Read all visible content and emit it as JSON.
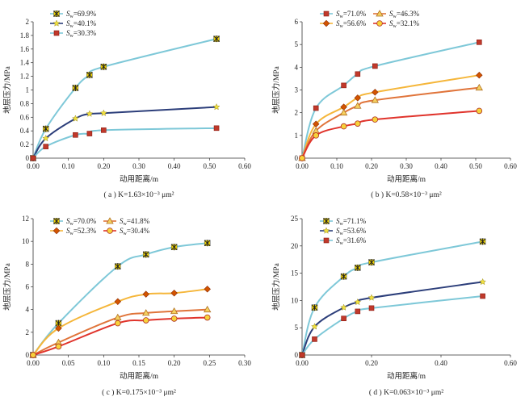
{
  "chart_data": [
    {
      "id": "a",
      "type": "line",
      "caption": "( a ) K=1.63×10⁻³ μm²",
      "xlabel": "动用距离/m",
      "ylabel": "地层压力/MPa",
      "xlim": [
        0,
        0.6
      ],
      "ylim": [
        0,
        2
      ],
      "xticks": [
        0,
        0.1,
        0.2,
        0.3,
        0.4,
        0.5,
        0.6
      ],
      "yticks": [
        0,
        0.2,
        0.4,
        0.6,
        0.8,
        1.0,
        1.2,
        1.4,
        1.6,
        1.8,
        2.0
      ],
      "xtick_labels": [
        "0.00",
        "0.10",
        "0.20",
        "0.30",
        "0.40",
        "0.50",
        "0.60"
      ],
      "ytick_labels": [
        "0",
        "0.2",
        "0.4",
        "0.6",
        "0.8",
        "1",
        "1.2",
        "1.4",
        "1.6",
        "1.8",
        "2"
      ],
      "grid": false,
      "legend_position": "top-left",
      "series": [
        {
          "name": "Sw=69.9%",
          "sub_label": "w",
          "value_label": "=69.9%",
          "marker": "x-star",
          "marker_color": "#f0d400",
          "line_color": "#7ec8d8",
          "x": [
            0,
            0.036,
            0.12,
            0.16,
            0.2,
            0.52
          ],
          "y": [
            0,
            0.43,
            1.03,
            1.22,
            1.34,
            1.75
          ]
        },
        {
          "name": "Sw=40.1%",
          "sub_label": "w",
          "value_label": "=40.1%",
          "marker": "star",
          "marker_color": "#f0e040",
          "line_color": "#2c3e7a",
          "x": [
            0,
            0.036,
            0.12,
            0.16,
            0.2,
            0.52
          ],
          "y": [
            0,
            0.29,
            0.58,
            0.65,
            0.66,
            0.75
          ]
        },
        {
          "name": "Sw=30.3%",
          "sub_label": "w",
          "value_label": "=30.3%",
          "marker": "square",
          "marker_color": "#c0392b",
          "line_color": "#7ec8d8",
          "x": [
            0,
            0.036,
            0.12,
            0.16,
            0.2,
            0.52
          ],
          "y": [
            0,
            0.17,
            0.34,
            0.36,
            0.41,
            0.44
          ]
        }
      ]
    },
    {
      "id": "b",
      "type": "line",
      "caption": "( b ) K=0.58×10⁻³ μm²",
      "xlabel": "动用距离/m",
      "ylabel": "地层压力/MPa",
      "xlim": [
        0,
        0.6
      ],
      "ylim": [
        0,
        6
      ],
      "xticks": [
        0,
        0.1,
        0.2,
        0.3,
        0.4,
        0.5,
        0.6
      ],
      "yticks": [
        0,
        1,
        2,
        3,
        4,
        5,
        6
      ],
      "xtick_labels": [
        "0.00",
        "0.10",
        "0.20",
        "0.30",
        "0.40",
        "0.50",
        "0.60"
      ],
      "ytick_labels": [
        "0",
        "1",
        "2",
        "3",
        "4",
        "5",
        "6"
      ],
      "grid": false,
      "legend_position": "top-left",
      "series": [
        {
          "name": "Sw=71.0%",
          "sub_label": "w",
          "value_label": "=71.0%",
          "marker": "square",
          "marker_color": "#c0392b",
          "line_color": "#7ec8d8",
          "x": [
            0,
            0.04,
            0.12,
            0.16,
            0.21,
            0.51
          ],
          "y": [
            0,
            2.2,
            3.2,
            3.7,
            4.05,
            5.1
          ]
        },
        {
          "name": "Sw=56.6%",
          "sub_label": "w",
          "value_label": "=56.6%",
          "marker": "diamond",
          "marker_color": "#d35400",
          "line_color": "#f5b63a",
          "x": [
            0,
            0.04,
            0.12,
            0.16,
            0.21,
            0.51
          ],
          "y": [
            0,
            1.5,
            2.25,
            2.65,
            2.9,
            3.65
          ]
        },
        {
          "name": "Sw=46.3%",
          "sub_label": "w",
          "value_label": "=46.3%",
          "marker": "triangle",
          "marker_color": "#f5d060",
          "line_color": "#e0743a",
          "x": [
            0,
            0.04,
            0.12,
            0.16,
            0.21,
            0.51
          ],
          "y": [
            0,
            1.2,
            2.0,
            2.3,
            2.55,
            3.1
          ]
        },
        {
          "name": "Sw=32.1%",
          "sub_label": "w",
          "value_label": "=32.1%",
          "marker": "circle",
          "marker_color": "#f7d23a",
          "line_color": "#e0342c",
          "x": [
            0,
            0.04,
            0.12,
            0.16,
            0.21,
            0.51
          ],
          "y": [
            0,
            1.0,
            1.4,
            1.52,
            1.7,
            2.08
          ]
        }
      ]
    },
    {
      "id": "c",
      "type": "line",
      "caption": "( c ) K=0.175×10⁻³ μm²",
      "xlabel": "动用距离/m",
      "ylabel": "地层压力/MPa",
      "xlim": [
        0,
        0.3
      ],
      "ylim": [
        0,
        12
      ],
      "xticks": [
        0,
        0.05,
        0.1,
        0.15,
        0.2,
        0.25,
        0.3
      ],
      "yticks": [
        0,
        2,
        4,
        6,
        8,
        10,
        12
      ],
      "xtick_labels": [
        "0.00",
        "0.05",
        "0.10",
        "0.15",
        "0.20",
        "0.25",
        "0.30"
      ],
      "ytick_labels": [
        "0",
        "2",
        "4",
        "6",
        "8",
        "10",
        "12"
      ],
      "grid": false,
      "legend_position": "top-left",
      "series": [
        {
          "name": "Sw=70.0%",
          "sub_label": "w",
          "value_label": "=70.0%",
          "marker": "x-star",
          "marker_color": "#f0d400",
          "line_color": "#7ec8d8",
          "x": [
            0,
            0.036,
            0.12,
            0.16,
            0.2,
            0.247
          ],
          "y": [
            0,
            2.8,
            7.8,
            8.85,
            9.5,
            9.85
          ]
        },
        {
          "name": "Sw=52.3%",
          "sub_label": "w",
          "value_label": "=52.3%",
          "marker": "diamond",
          "marker_color": "#d35400",
          "line_color": "#f5b63a",
          "x": [
            0,
            0.036,
            0.12,
            0.16,
            0.2,
            0.247
          ],
          "y": [
            0,
            2.35,
            4.7,
            5.35,
            5.45,
            5.8
          ]
        },
        {
          "name": "Sw=41.8%",
          "sub_label": "w",
          "value_label": "=41.8%",
          "marker": "triangle",
          "marker_color": "#f5d060",
          "line_color": "#e0743a",
          "x": [
            0,
            0.036,
            0.12,
            0.16,
            0.2,
            0.247
          ],
          "y": [
            0,
            1.1,
            3.3,
            3.7,
            3.85,
            4.0
          ]
        },
        {
          "name": "Sw=30.4%",
          "sub_label": "w",
          "value_label": "=30.4%",
          "marker": "circle",
          "marker_color": "#f7d23a",
          "line_color": "#e0342c",
          "x": [
            0,
            0.036,
            0.12,
            0.16,
            0.2,
            0.247
          ],
          "y": [
            0,
            0.75,
            2.8,
            3.05,
            3.2,
            3.3
          ]
        }
      ]
    },
    {
      "id": "d",
      "type": "line",
      "caption": "( d ) K=0.063×10⁻³ μm²",
      "xlabel": "动用距离/m",
      "ylabel": "地层压力/MPa",
      "xlim": [
        0,
        0.6
      ],
      "ylim": [
        0,
        25
      ],
      "xticks": [
        0,
        0.2,
        0.4,
        0.6
      ],
      "yticks": [
        0,
        5,
        10,
        15,
        20,
        25
      ],
      "xtick_labels": [
        "0.00",
        "0.20",
        "0.40",
        "0.60"
      ],
      "ytick_labels": [
        "0",
        "5",
        "10",
        "15",
        "20",
        "25"
      ],
      "grid": false,
      "legend_position": "top-left",
      "series": [
        {
          "name": "Sw=71.1%",
          "sub_label": "w",
          "value_label": "=71.1%",
          "marker": "x-star",
          "marker_color": "#f0d400",
          "line_color": "#7ec8d8",
          "x": [
            0,
            0.036,
            0.12,
            0.16,
            0.2,
            0.52
          ],
          "y": [
            0,
            8.7,
            14.4,
            16.0,
            17.0,
            20.8
          ]
        },
        {
          "name": "Sw=53.6%",
          "sub_label": "w",
          "value_label": "=53.6%",
          "marker": "star",
          "marker_color": "#f0e040",
          "line_color": "#2c3e7a",
          "x": [
            0,
            0.036,
            0.12,
            0.16,
            0.2,
            0.52
          ],
          "y": [
            0,
            5.2,
            8.7,
            9.7,
            10.5,
            13.4
          ]
        },
        {
          "name": "Sw=31.6%",
          "sub_label": "w",
          "value_label": "=31.6%",
          "marker": "square",
          "marker_color": "#c0392b",
          "line_color": "#7ec8d8",
          "x": [
            0,
            0.036,
            0.12,
            0.16,
            0.2,
            0.52
          ],
          "y": [
            0,
            2.9,
            6.7,
            8.0,
            8.6,
            10.8
          ]
        }
      ]
    }
  ]
}
